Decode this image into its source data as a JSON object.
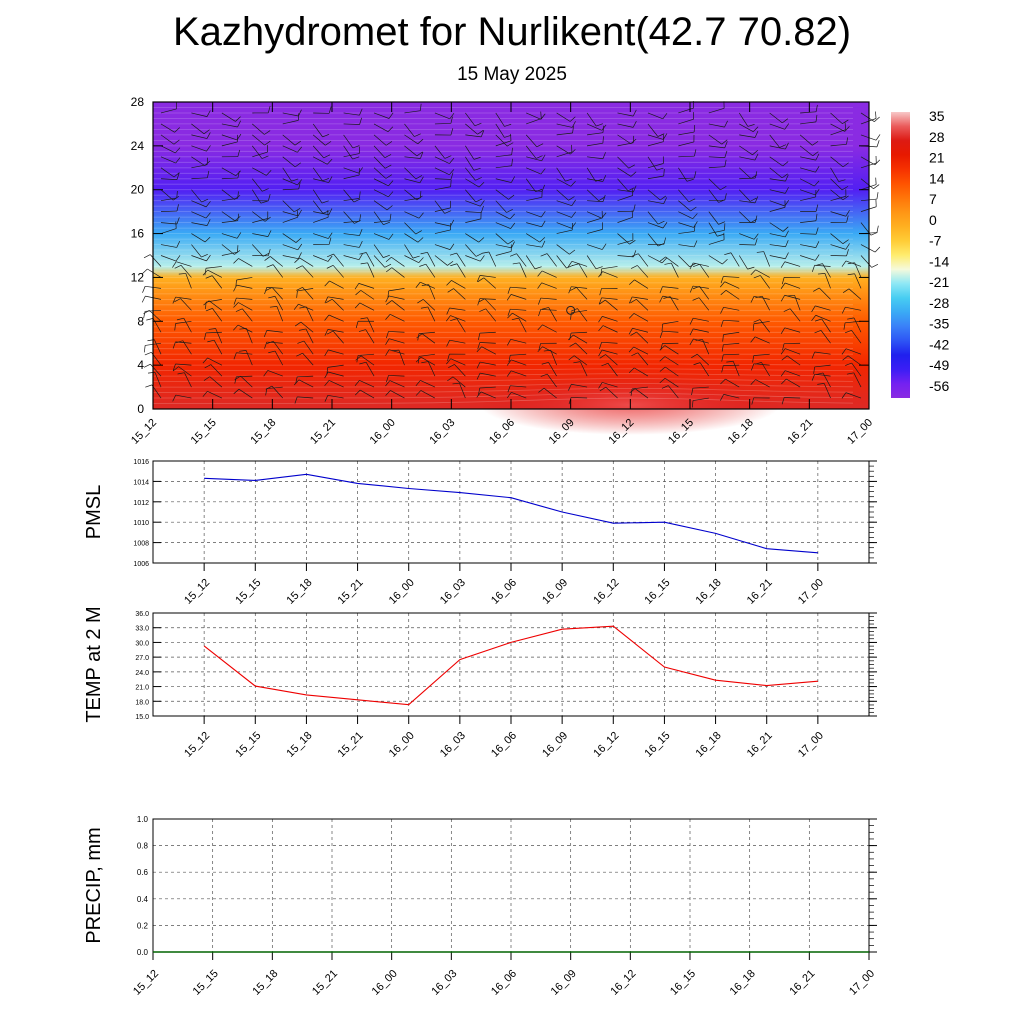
{
  "header": {
    "title": "Kazhydromet for Nurlikent(42.7 70.82)",
    "date": "15 May 2025"
  },
  "chart_data": [
    {
      "type": "heatmap",
      "name": "temperature-wind-cross-section",
      "y_ticks": [
        "0",
        "4",
        "8",
        "12",
        "16",
        "20",
        "24",
        "28"
      ],
      "ylim": [
        0,
        28
      ],
      "x_ticks": [
        "15_12",
        "15_15",
        "15_18",
        "15_21",
        "16_00",
        "16_03",
        "16_06",
        "16_09",
        "16_12",
        "16_15",
        "16_18",
        "16_21",
        "17_00"
      ],
      "colorbar_labels": [
        "35",
        "28",
        "21",
        "14",
        "7",
        "0",
        "-7",
        "-14",
        "-21",
        "-28",
        "-35",
        "-42",
        "-49",
        "-56"
      ],
      "colorbar_range": [
        -60,
        40
      ],
      "temperature_by_level": [
        {
          "level": 0,
          "value": 32
        },
        {
          "level": 4,
          "value": 22
        },
        {
          "level": 8,
          "value": 14
        },
        {
          "level": 12,
          "value": 0
        },
        {
          "level": 13,
          "value": -18
        },
        {
          "level": 16,
          "value": -30
        },
        {
          "level": 20,
          "value": -52
        },
        {
          "level": 24,
          "value": -60
        },
        {
          "level": 28,
          "value": -60
        }
      ],
      "wind_barbs": true,
      "calm_marker": {
        "time": "16_09",
        "level": 9
      }
    },
    {
      "type": "line",
      "name": "pmsl",
      "ylabel": "PMSL",
      "ylim": [
        1006,
        1016
      ],
      "y_ticks": [
        "1006",
        "1008",
        "1010",
        "1012",
        "1014",
        "1016"
      ],
      "x": [
        "15_12",
        "15_15",
        "15_18",
        "15_21",
        "16_00",
        "16_03",
        "16_06",
        "16_09",
        "16_12",
        "16_15",
        "16_18",
        "16_21",
        "17_00"
      ],
      "values": [
        1014.3,
        1014.1,
        1014.7,
        1013.8,
        1013.3,
        1012.9,
        1012.4,
        1011.0,
        1009.9,
        1010.0,
        1008.9,
        1007.4,
        1007.0
      ],
      "color": "#0000cc"
    },
    {
      "type": "line",
      "name": "temp-2m",
      "ylabel": "TEMP at 2 M",
      "ylim": [
        15,
        36
      ],
      "y_ticks": [
        "15.0",
        "18.0",
        "21.0",
        "24.0",
        "27.0",
        "30.0",
        "33.0",
        "36.0"
      ],
      "x": [
        "15_12",
        "15_15",
        "15_18",
        "15_21",
        "16_00",
        "16_03",
        "16_06",
        "16_09",
        "16_12",
        "16_15",
        "16_18",
        "16_21",
        "17_00"
      ],
      "values": [
        29.3,
        21.1,
        19.3,
        18.3,
        17.3,
        26.5,
        30.0,
        32.7,
        33.3,
        25.0,
        22.3,
        21.2,
        22.1
      ],
      "color": "#ee0000"
    },
    {
      "type": "line",
      "name": "precip",
      "ylabel": "PRECIP, mm",
      "ylim": [
        0,
        1
      ],
      "y_ticks": [
        "0.0",
        "0.2",
        "0.4",
        "0.6",
        "0.8",
        "1.0"
      ],
      "x_ticks": [
        "15_12",
        "15_15",
        "15_18",
        "15_21",
        "16_00",
        "16_03",
        "16_06",
        "16_09",
        "16_12",
        "16_15",
        "16_18",
        "16_21",
        "17_00"
      ],
      "values": [
        0,
        0,
        0,
        0,
        0,
        0,
        0,
        0,
        0,
        0,
        0,
        0,
        0
      ],
      "color": "#006400"
    }
  ]
}
